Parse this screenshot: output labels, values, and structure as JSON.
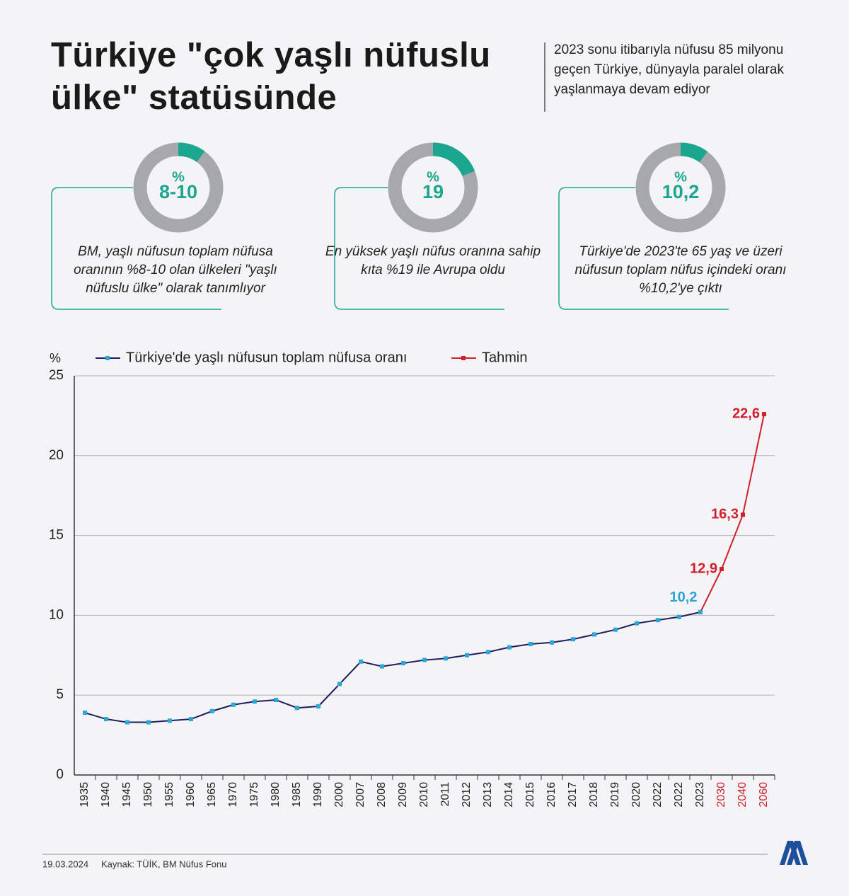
{
  "header": {
    "title": "Türkiye \"çok yaşlı nüfuslu ülke\" statüsünde",
    "subtitle": "2023 sonu itibarıyla nüfusu 85 milyonu geçen Türkiye, dünyayla paralel olarak yaşlanmaya devam ediyor"
  },
  "stats": [
    {
      "symbol": "%",
      "values": [
        8,
        10
      ],
      "value_label": "8-10",
      "text": "BM, yaşlı nüfusun toplam nüfusa oranının %8-10 olan ülkeleri \"yaşlı nüfuslu ülke\" olarak tanımlıyor"
    },
    {
      "symbol": "%",
      "values": [
        19
      ],
      "value_label": "19",
      "text": "En yüksek yaşlı nüfus oranına sahip kıta %19 ile Avrupa oldu"
    },
    {
      "symbol": "%",
      "values": [
        10.2
      ],
      "value_label": "10,2",
      "text": "Türkiye'de 2023'te 65 yaş ve üzeri nüfusun toplam nüfus içindeki oranı %10,2'ye çıktı"
    }
  ],
  "donut_colors": {
    "fill": "#1aa68f",
    "track": "#a7a8ac"
  },
  "chart_data": {
    "type": "line",
    "y_label": "%",
    "categories": [
      "1935",
      "1940",
      "1945",
      "1950",
      "1955",
      "1960",
      "1965",
      "1970",
      "1975",
      "1980",
      "1985",
      "1990",
      "2000",
      "2007",
      "2008",
      "2009",
      "2010",
      "2011",
      "2012",
      "2013",
      "2014",
      "2015",
      "2016",
      "2017",
      "2018",
      "2019",
      "2020",
      "2022",
      "2022",
      "2023",
      "2030",
      "2040",
      "2060"
    ],
    "series": [
      {
        "name": "Türkiye'de yaşlı nüfusun toplam nüfusa oranı",
        "color": "#1c1f5e",
        "marker_color": "#2aa6d8",
        "values": [
          3.9,
          3.5,
          3.3,
          3.3,
          3.4,
          3.5,
          4.0,
          4.4,
          4.6,
          4.7,
          4.2,
          4.3,
          5.7,
          7.1,
          6.8,
          7.0,
          7.2,
          7.3,
          7.5,
          7.7,
          8.0,
          8.2,
          8.3,
          8.5,
          8.8,
          9.1,
          9.5,
          9.7,
          9.9,
          10.2,
          null,
          null,
          null
        ],
        "value_labels": [
          null,
          null,
          null,
          null,
          null,
          null,
          null,
          null,
          null,
          null,
          null,
          null,
          null,
          null,
          null,
          null,
          null,
          null,
          null,
          null,
          null,
          null,
          null,
          null,
          null,
          null,
          null,
          null,
          null,
          "10,2",
          null,
          null,
          null
        ]
      },
      {
        "name": "Tahmin",
        "color": "#d0202e",
        "marker_color": "#d0202e",
        "values": [
          null,
          null,
          null,
          null,
          null,
          null,
          null,
          null,
          null,
          null,
          null,
          null,
          null,
          null,
          null,
          null,
          null,
          null,
          null,
          null,
          null,
          null,
          null,
          null,
          null,
          null,
          null,
          null,
          null,
          10.2,
          12.9,
          16.3,
          22.6
        ],
        "value_labels": [
          null,
          null,
          null,
          null,
          null,
          null,
          null,
          null,
          null,
          null,
          null,
          null,
          null,
          null,
          null,
          null,
          null,
          null,
          null,
          null,
          null,
          null,
          null,
          null,
          null,
          null,
          null,
          null,
          null,
          null,
          "12,9",
          "16,3",
          "22,6"
        ]
      }
    ],
    "ylim": [
      0,
      25
    ],
    "yticks": [
      0,
      5,
      10,
      15,
      20,
      25
    ],
    "grid": true
  },
  "footer": {
    "date": "19.03.2024",
    "source": "Kaynak: TÜİK, BM Nüfus Fonu"
  }
}
